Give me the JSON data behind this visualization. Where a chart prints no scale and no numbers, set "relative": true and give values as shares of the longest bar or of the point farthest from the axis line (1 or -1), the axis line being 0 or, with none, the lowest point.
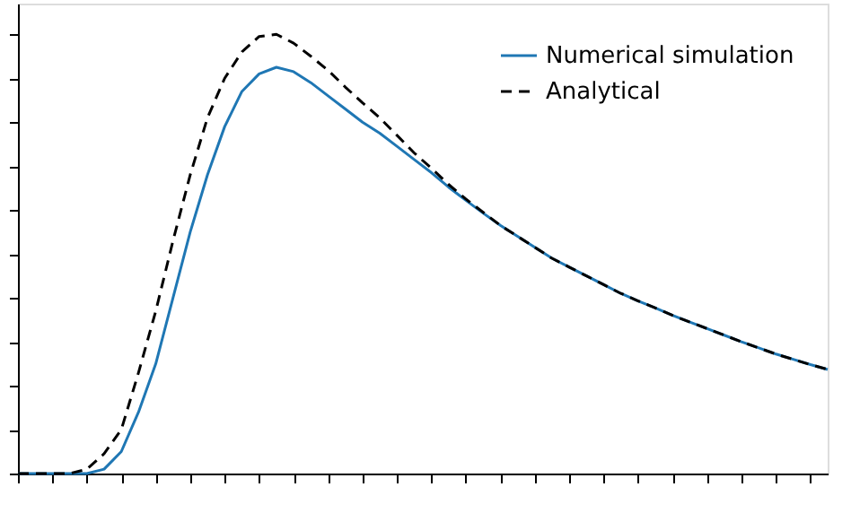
{
  "chart_data": {
    "type": "line",
    "relative": true,
    "tick_labels": false,
    "grid": false,
    "legend": "top right",
    "categories": [
      null,
      null,
      null,
      null,
      null,
      null,
      null,
      null,
      null,
      null,
      null,
      null,
      null,
      null,
      null,
      null,
      null,
      null,
      null,
      null,
      null,
      null,
      null,
      null,
      null,
      null,
      null,
      null,
      null,
      null,
      null,
      null,
      null,
      null,
      null,
      null,
      null,
      null,
      null,
      null,
      null,
      null,
      null,
      null,
      null,
      null,
      null,
      null
    ],
    "series": [
      {
        "name": "Numerical simulation",
        "color": "#1f77b4",
        "line_style": "solid",
        "values": [
          0,
          0,
          0,
          0,
          0,
          0.01,
          0.05,
          0.14,
          0.25,
          0.4,
          0.55,
          0.68,
          0.79,
          0.87,
          0.91,
          0.925,
          0.915,
          0.89,
          0.86,
          0.83,
          0.8,
          0.775,
          0.745,
          0.715,
          0.685,
          0.652,
          0.622,
          0.593,
          0.565,
          0.54,
          0.515,
          0.49,
          0.47,
          0.45,
          0.43,
          0.41,
          0.393,
          0.377,
          0.36,
          0.345,
          0.33,
          0.315,
          0.3,
          0.286,
          0.272,
          0.26,
          0.248,
          0.237
        ]
      },
      {
        "name": "Analytical",
        "color": "#000000",
        "line_style": "dashed",
        "values": [
          0,
          0,
          0,
          0,
          0.01,
          0.045,
          0.1,
          0.23,
          0.37,
          0.53,
          0.68,
          0.81,
          0.9,
          0.96,
          0.995,
          1,
          0.98,
          0.95,
          0.918,
          0.88,
          0.844,
          0.81,
          0.77,
          0.73,
          0.695,
          0.658,
          0.625,
          0.595,
          0.565,
          0.54,
          0.515,
          0.49,
          0.47,
          0.45,
          0.43,
          0.41,
          0.393,
          0.377,
          0.36,
          0.345,
          0.33,
          0.315,
          0.3,
          0.286,
          0.272,
          0.26,
          0.248,
          0.237
        ]
      }
    ]
  }
}
